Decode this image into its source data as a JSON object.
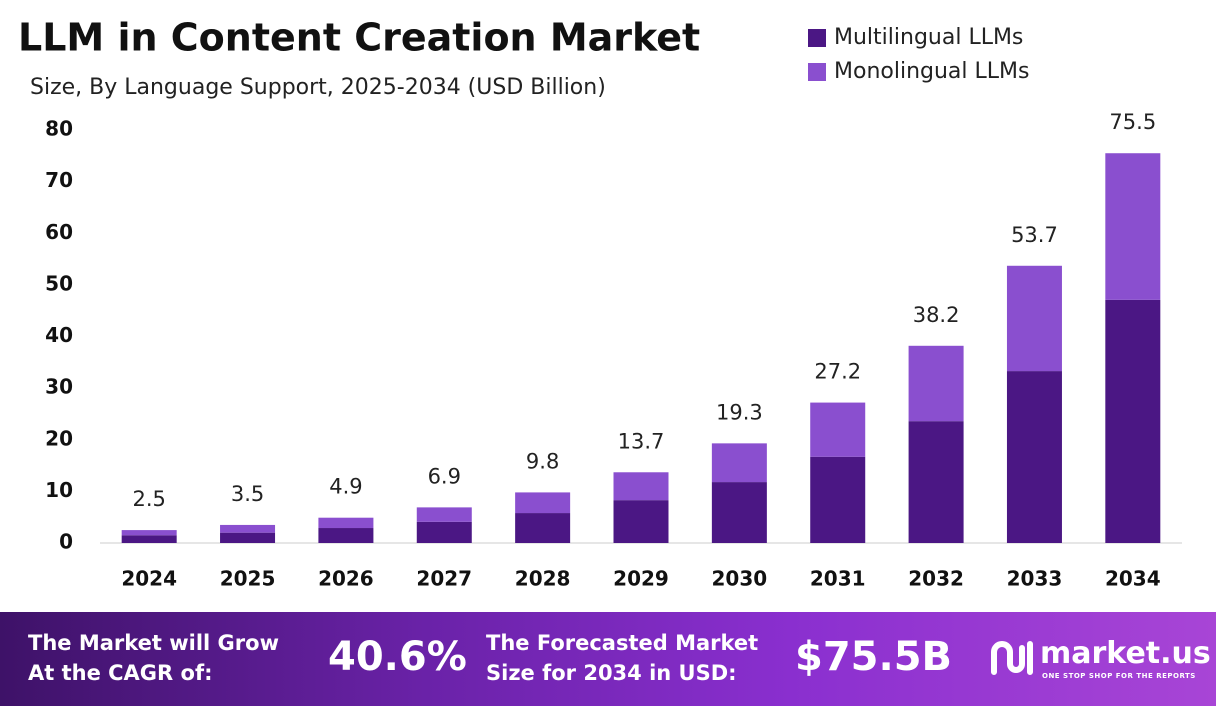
{
  "chart_data": {
    "type": "stacked-bar",
    "title": "LLM in Content Creation Market",
    "subtitle": "Size, By Language Support, 2025-2034 (USD Billion)",
    "categories": [
      "2024",
      "2025",
      "2026",
      "2027",
      "2028",
      "2029",
      "2030",
      "2031",
      "2032",
      "2033",
      "2034"
    ],
    "series": [
      {
        "name": "Multilingual LLMs",
        "color": "#4b1784",
        "values": [
          1.5,
          2.0,
          2.9,
          4.1,
          5.8,
          8.3,
          11.8,
          16.7,
          23.6,
          33.3,
          47.1
        ]
      },
      {
        "name": "Monolingual LLMs",
        "color": "#8a4fcf",
        "values": [
          1.0,
          1.5,
          2.0,
          2.8,
          4.0,
          5.4,
          7.5,
          10.5,
          14.6,
          20.4,
          28.4
        ]
      }
    ],
    "totals": [
      2.5,
      3.5,
      4.9,
      6.9,
      9.8,
      13.7,
      19.3,
      27.2,
      38.2,
      53.7,
      75.5
    ],
    "ylim": [
      0,
      80
    ],
    "yticks": [
      0,
      10,
      20,
      30,
      40,
      50,
      60,
      70,
      80
    ],
    "grid": false,
    "legend": "top-right"
  },
  "footer": {
    "cagr_text": [
      "The Market will Grow",
      "At the CAGR of:"
    ],
    "cagr_value": "40.6%",
    "forecast_text": [
      "The Forecasted Market",
      "Size for 2034 in USD:"
    ],
    "forecast_value": "$75.5B",
    "brand": "market.us",
    "tagline": "ONE STOP SHOP FOR THE REPORTS"
  }
}
